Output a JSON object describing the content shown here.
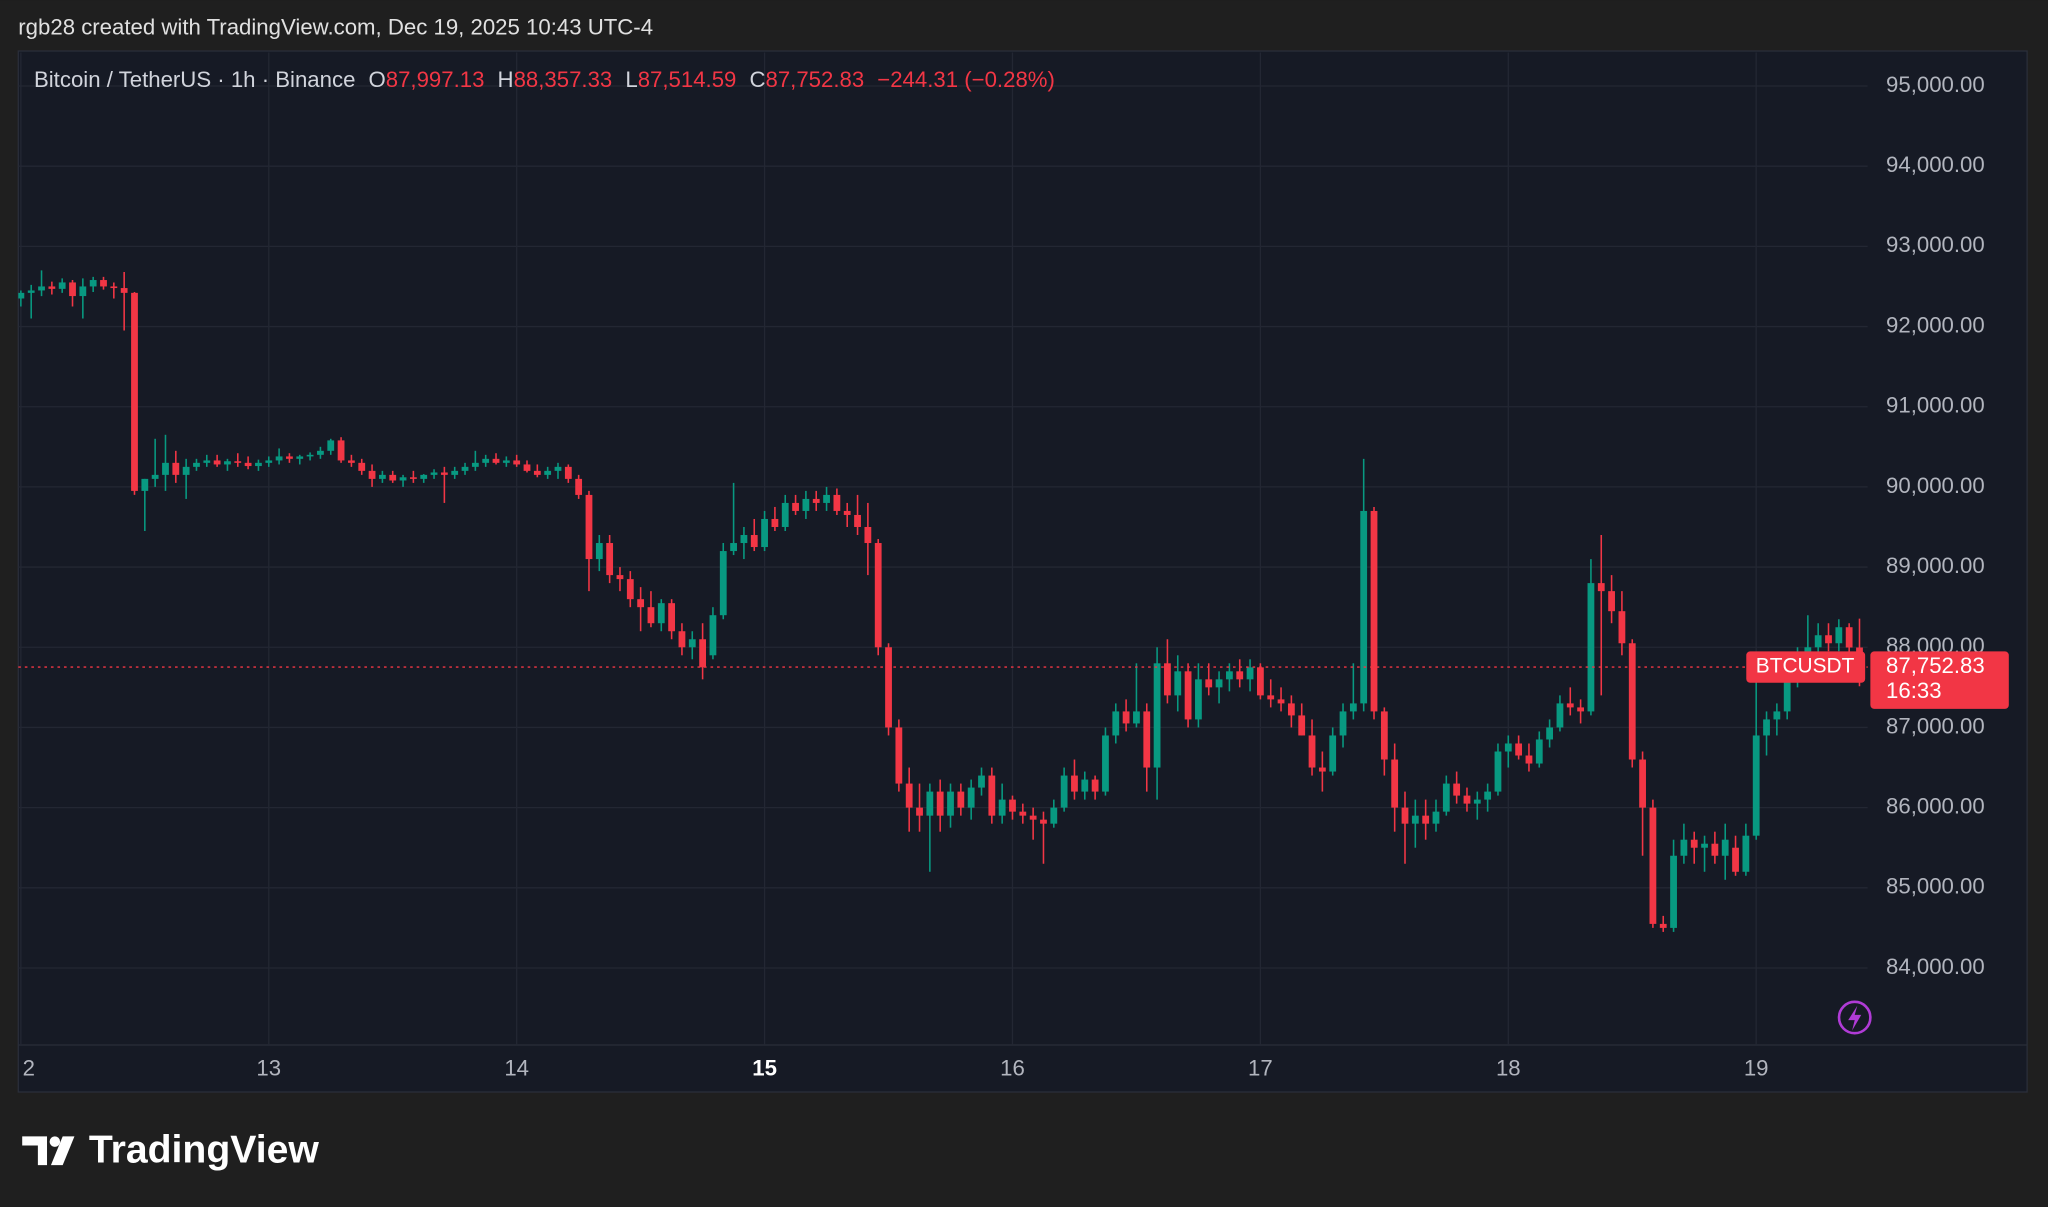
{
  "credit": "rgb28 created with TradingView.com, Dec 19, 2025 10:43 UTC-4",
  "brand": "TradingView",
  "chart_data": {
    "type": "candlestick",
    "title": "Bitcoin / TetherUS · 1h · Binance",
    "ohlc_labels": [
      "O",
      "H",
      "L",
      "C"
    ],
    "ohlc_value_labels": [
      "87,997.13",
      "88,357.33",
      "87,514.59",
      "87,752.83"
    ],
    "change_label": "−244.31 (−0.28%)",
    "symbol": "BTCUSDT",
    "countdown": "16:33",
    "last_price": {
      "value": 87752.83,
      "label": "87,752.83"
    },
    "up_color": "#089981",
    "down_color": "#f23645",
    "grid": true,
    "xlim": [
      -0.25,
      178.8
    ],
    "xticks": [
      {
        "value": 0,
        "label": "2"
      },
      {
        "value": 24,
        "label": "13"
      },
      {
        "value": 48,
        "label": "14"
      },
      {
        "value": 72,
        "label": "15",
        "bold": true
      },
      {
        "value": 96,
        "label": "16"
      },
      {
        "value": 120,
        "label": "17"
      },
      {
        "value": 144,
        "label": "18"
      },
      {
        "value": 168,
        "label": "19"
      }
    ],
    "ylim": [
      83040,
      95420
    ],
    "yticks": [
      {
        "value": 84000,
        "label": "84,000.00"
      },
      {
        "value": 85000,
        "label": "85,000.00"
      },
      {
        "value": 86000,
        "label": "86,000.00"
      },
      {
        "value": 87000,
        "label": "87,000.00"
      },
      {
        "value": 88000,
        "label": "88,000.00"
      },
      {
        "value": 89000,
        "label": "89,000.00"
      },
      {
        "value": 90000,
        "label": "90,000.00"
      },
      {
        "value": 91000,
        "label": "91,000.00"
      },
      {
        "value": 92000,
        "label": "92,000.00"
      },
      {
        "value": 93000,
        "label": "93,000.00"
      },
      {
        "value": 94000,
        "label": "94,000.00"
      },
      {
        "value": 95000,
        "label": "95,000.00"
      }
    ],
    "candles": [
      [
        92350,
        92450,
        92250,
        92420
      ],
      [
        92420,
        92520,
        92100,
        92450
      ],
      [
        92450,
        92700,
        92380,
        92500
      ],
      [
        92500,
        92560,
        92400,
        92470
      ],
      [
        92470,
        92600,
        92420,
        92550
      ],
      [
        92550,
        92580,
        92250,
        92380
      ],
      [
        92380,
        92600,
        92100,
        92500
      ],
      [
        92500,
        92620,
        92430,
        92580
      ],
      [
        92580,
        92620,
        92460,
        92500
      ],
      [
        92500,
        92550,
        92350,
        92480
      ],
      [
        92480,
        92680,
        91950,
        92420
      ],
      [
        92420,
        92430,
        89900,
        89950
      ],
      [
        89950,
        90100,
        89450,
        90100
      ],
      [
        90100,
        90600,
        90000,
        90150
      ],
      [
        90150,
        90650,
        89950,
        90300
      ],
      [
        90300,
        90450,
        90050,
        90150
      ],
      [
        90150,
        90350,
        89850,
        90250
      ],
      [
        90250,
        90350,
        90200,
        90300
      ],
      [
        90300,
        90400,
        90250,
        90330
      ],
      [
        90330,
        90400,
        90250,
        90280
      ],
      [
        90280,
        90350,
        90200,
        90320
      ],
      [
        90320,
        90420,
        90250,
        90300
      ],
      [
        90300,
        90380,
        90220,
        90260
      ],
      [
        90260,
        90340,
        90200,
        90300
      ],
      [
        90300,
        90380,
        90250,
        90330
      ],
      [
        90330,
        90480,
        90280,
        90380
      ],
      [
        90380,
        90420,
        90300,
        90350
      ],
      [
        90350,
        90400,
        90280,
        90380
      ],
      [
        90380,
        90430,
        90330,
        90400
      ],
      [
        90400,
        90500,
        90350,
        90450
      ],
      [
        90450,
        90600,
        90400,
        90580
      ],
      [
        90580,
        90620,
        90300,
        90330
      ],
      [
        90330,
        90400,
        90250,
        90300
      ],
      [
        90300,
        90350,
        90150,
        90200
      ],
      [
        90200,
        90280,
        90000,
        90100
      ],
      [
        90100,
        90200,
        90050,
        90150
      ],
      [
        90150,
        90200,
        90050,
        90080
      ],
      [
        90080,
        90150,
        90000,
        90120
      ],
      [
        90120,
        90200,
        90050,
        90100
      ],
      [
        90100,
        90160,
        90050,
        90150
      ],
      [
        90150,
        90220,
        90100,
        90180
      ],
      [
        90180,
        90250,
        89800,
        90150
      ],
      [
        90150,
        90250,
        90100,
        90200
      ],
      [
        90200,
        90300,
        90150,
        90250
      ],
      [
        90250,
        90450,
        90200,
        90300
      ],
      [
        90300,
        90400,
        90250,
        90350
      ],
      [
        90350,
        90420,
        90280,
        90300
      ],
      [
        90300,
        90380,
        90250,
        90330
      ],
      [
        90330,
        90400,
        90250,
        90280
      ],
      [
        90280,
        90330,
        90180,
        90200
      ],
      [
        90200,
        90280,
        90120,
        90150
      ],
      [
        90150,
        90250,
        90100,
        90200
      ],
      [
        90200,
        90300,
        90100,
        90250
      ],
      [
        90250,
        90280,
        90050,
        90100
      ],
      [
        90100,
        90150,
        89850,
        89900
      ],
      [
        89900,
        89950,
        88700,
        89100
      ],
      [
        89100,
        89400,
        88950,
        89300
      ],
      [
        89300,
        89400,
        88800,
        88900
      ],
      [
        88900,
        89000,
        88700,
        88850
      ],
      [
        88850,
        88950,
        88500,
        88600
      ],
      [
        88600,
        88750,
        88200,
        88500
      ],
      [
        88500,
        88700,
        88250,
        88300
      ],
      [
        88300,
        88600,
        88200,
        88550
      ],
      [
        88550,
        88600,
        88100,
        88200
      ],
      [
        88200,
        88300,
        87900,
        88000
      ],
      [
        88000,
        88200,
        87850,
        88100
      ],
      [
        88100,
        88300,
        87600,
        87750
      ],
      [
        87900,
        88500,
        87850,
        88400
      ],
      [
        88400,
        89300,
        88350,
        89200
      ],
      [
        89200,
        90050,
        89150,
        89300
      ],
      [
        89300,
        89500,
        89100,
        89400
      ],
      [
        89400,
        89600,
        89200,
        89250
      ],
      [
        89250,
        89700,
        89200,
        89600
      ],
      [
        89600,
        89750,
        89450,
        89500
      ],
      [
        89500,
        89900,
        89450,
        89800
      ],
      [
        89800,
        89900,
        89650,
        89700
      ],
      [
        89700,
        89950,
        89600,
        89850
      ],
      [
        89850,
        89950,
        89700,
        89800
      ],
      [
        89800,
        90000,
        89700,
        89900
      ],
      [
        89900,
        89980,
        89650,
        89700
      ],
      [
        89700,
        89800,
        89500,
        89650
      ],
      [
        89650,
        89900,
        89400,
        89500
      ],
      [
        89500,
        89800,
        88900,
        89300
      ],
      [
        89300,
        89350,
        87900,
        88000
      ],
      [
        88000,
        88050,
        86900,
        87000
      ],
      [
        87000,
        87100,
        86200,
        86300
      ],
      [
        86300,
        86500,
        85700,
        86000
      ],
      [
        86000,
        86300,
        85700,
        85900
      ],
      [
        85900,
        86300,
        85200,
        86200
      ],
      [
        86200,
        86350,
        85700,
        85900
      ],
      [
        85900,
        86300,
        85750,
        86200
      ],
      [
        86200,
        86300,
        85900,
        86000
      ],
      [
        86000,
        86350,
        85850,
        86250
      ],
      [
        86250,
        86500,
        86150,
        86400
      ],
      [
        86400,
        86500,
        85800,
        85900
      ],
      [
        85900,
        86300,
        85800,
        86100
      ],
      [
        86100,
        86150,
        85850,
        85950
      ],
      [
        85950,
        86050,
        85800,
        85900
      ],
      [
        85900,
        86000,
        85600,
        85850
      ],
      [
        85850,
        85950,
        85300,
        85800
      ],
      [
        85800,
        86100,
        85750,
        86000
      ],
      [
        86000,
        86500,
        85950,
        86400
      ],
      [
        86400,
        86600,
        86100,
        86200
      ],
      [
        86200,
        86450,
        86100,
        86350
      ],
      [
        86350,
        86400,
        86100,
        86200
      ],
      [
        86200,
        87000,
        86150,
        86900
      ],
      [
        86900,
        87300,
        86800,
        87200
      ],
      [
        87200,
        87350,
        86950,
        87050
      ],
      [
        87050,
        87800,
        87000,
        87200
      ],
      [
        87200,
        87300,
        86200,
        86500
      ],
      [
        86500,
        88000,
        86100,
        87800
      ],
      [
        87800,
        88100,
        87300,
        87400
      ],
      [
        87400,
        87900,
        87200,
        87700
      ],
      [
        87700,
        87800,
        87000,
        87100
      ],
      [
        87100,
        87800,
        87000,
        87600
      ],
      [
        87600,
        87800,
        87400,
        87500
      ],
      [
        87500,
        87700,
        87300,
        87600
      ],
      [
        87600,
        87800,
        87450,
        87700
      ],
      [
        87700,
        87850,
        87500,
        87600
      ],
      [
        87600,
        87850,
        87450,
        87750
      ],
      [
        87750,
        87800,
        87350,
        87400
      ],
      [
        87400,
        87600,
        87250,
        87350
      ],
      [
        87350,
        87500,
        87200,
        87300
      ],
      [
        87300,
        87400,
        87000,
        87150
      ],
      [
        87150,
        87300,
        86900,
        86900
      ],
      [
        86900,
        87100,
        86400,
        86500
      ],
      [
        86500,
        86700,
        86200,
        86450
      ],
      [
        86450,
        87000,
        86400,
        86900
      ],
      [
        86900,
        87300,
        86750,
        87200
      ],
      [
        87200,
        87800,
        87100,
        87300
      ],
      [
        87300,
        90350,
        87200,
        89700
      ],
      [
        89700,
        89750,
        87100,
        87200
      ],
      [
        87200,
        87250,
        86400,
        86600
      ],
      [
        86600,
        86800,
        85700,
        86000
      ],
      [
        86000,
        86200,
        85300,
        85800
      ],
      [
        85800,
        86100,
        85500,
        85900
      ],
      [
        85900,
        86100,
        85600,
        85800
      ],
      [
        85800,
        86100,
        85700,
        85950
      ],
      [
        85950,
        86400,
        85900,
        86300
      ],
      [
        86300,
        86450,
        86050,
        86150
      ],
      [
        86150,
        86250,
        85950,
        86050
      ],
      [
        86050,
        86200,
        85850,
        86100
      ],
      [
        86100,
        86300,
        85950,
        86200
      ],
      [
        86200,
        86800,
        86150,
        86700
      ],
      [
        86700,
        86900,
        86500,
        86800
      ],
      [
        86800,
        86900,
        86600,
        86650
      ],
      [
        86650,
        86800,
        86450,
        86550
      ],
      [
        86550,
        86950,
        86500,
        86850
      ],
      [
        86850,
        87100,
        86750,
        87000
      ],
      [
        87000,
        87400,
        86950,
        87300
      ],
      [
        87300,
        87500,
        87150,
        87250
      ],
      [
        87250,
        87350,
        87050,
        87200
      ],
      [
        87200,
        89100,
        87150,
        88800
      ],
      [
        88800,
        89400,
        87400,
        88700
      ],
      [
        88700,
        88900,
        88300,
        88450
      ],
      [
        88450,
        88700,
        87900,
        88050
      ],
      [
        88050,
        88100,
        86500,
        86600
      ],
      [
        86600,
        86700,
        85400,
        86000
      ],
      [
        86000,
        86100,
        84500,
        84550
      ],
      [
        84550,
        84650,
        84450,
        84500
      ],
      [
        84500,
        85600,
        84450,
        85400
      ],
      [
        85400,
        85800,
        85300,
        85600
      ],
      [
        85600,
        85700,
        85300,
        85500
      ],
      [
        85500,
        85650,
        85200,
        85550
      ],
      [
        85550,
        85700,
        85300,
        85400
      ],
      [
        85400,
        85800,
        85100,
        85600
      ],
      [
        85500,
        85650,
        85150,
        85200
      ],
      [
        85200,
        85800,
        85150,
        85650
      ],
      [
        85650,
        87600,
        85600,
        86900
      ],
      [
        86900,
        87200,
        86650,
        87100
      ],
      [
        87100,
        87300,
        86900,
        87200
      ],
      [
        87200,
        87800,
        87100,
        87600
      ],
      [
        87600,
        88000,
        87500,
        87900
      ],
      [
        87900,
        88400,
        87800,
        88000
      ],
      [
        88000,
        88300,
        87800,
        88150
      ],
      [
        88150,
        88300,
        87950,
        88050
      ],
      [
        88050,
        88350,
        87950,
        88250
      ],
      [
        88250,
        88300,
        87900,
        87997.13
      ],
      [
        87997.13,
        88357.33,
        87514.59,
        87752.83
      ]
    ]
  }
}
